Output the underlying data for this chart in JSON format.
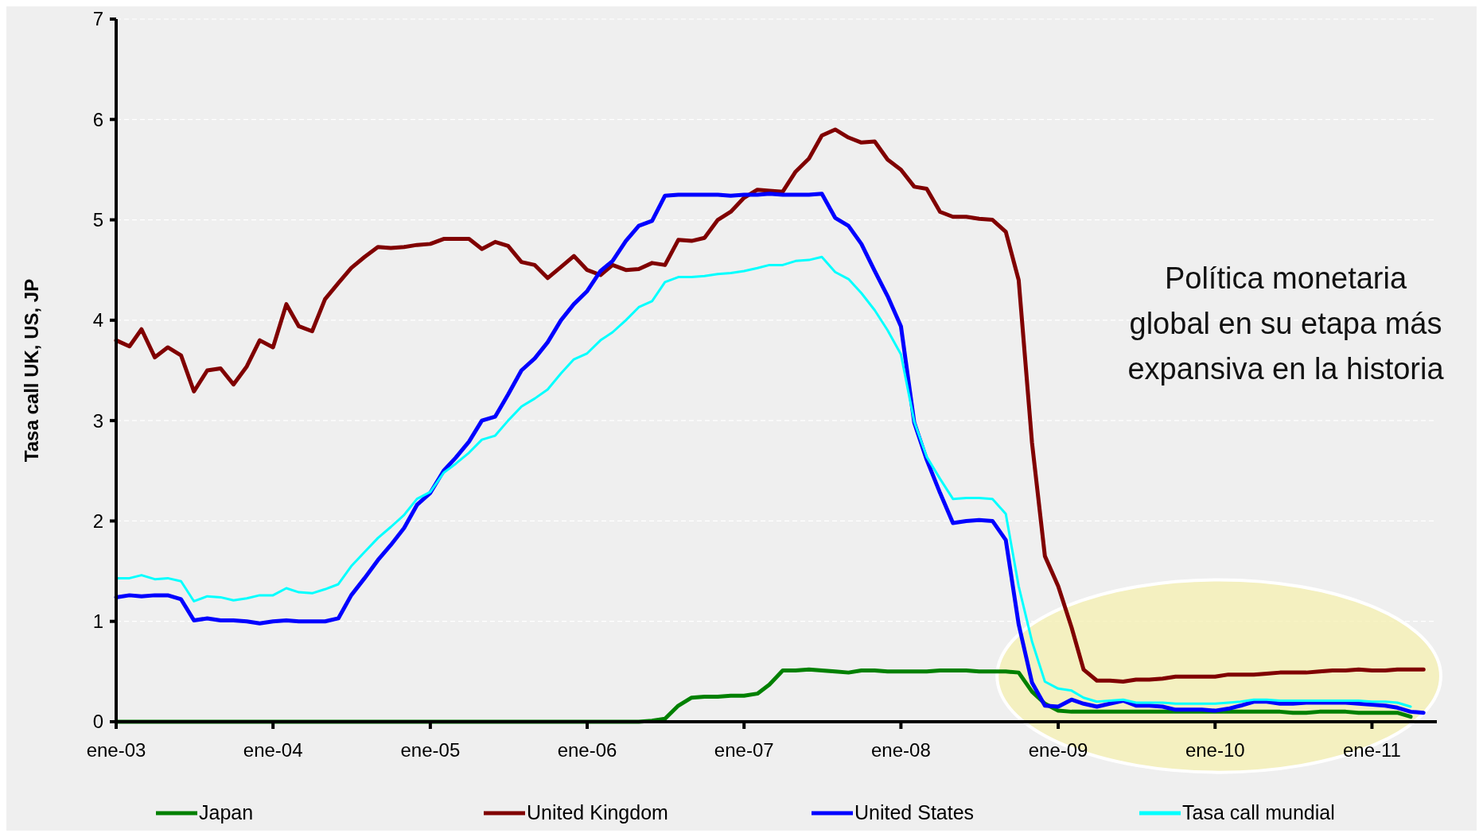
{
  "chart_data": {
    "type": "line",
    "ylabel": "Tasa call UK, US, JP",
    "annotations": [
      "Política monetaria global en su etapa más expansiva en la historia"
    ],
    "x": [
      "2003-01",
      "2003-02",
      "2003-03",
      "2003-04",
      "2003-05",
      "2003-06",
      "2003-07",
      "2003-08",
      "2003-09",
      "2003-10",
      "2003-11",
      "2003-12",
      "2004-01",
      "2004-02",
      "2004-03",
      "2004-04",
      "2004-05",
      "2004-06",
      "2004-07",
      "2004-08",
      "2004-09",
      "2004-10",
      "2004-11",
      "2004-12",
      "2005-01",
      "2005-02",
      "2005-03",
      "2005-04",
      "2005-05",
      "2005-06",
      "2005-07",
      "2005-08",
      "2005-09",
      "2005-10",
      "2005-11",
      "2005-12",
      "2006-01",
      "2006-02",
      "2006-03",
      "2006-04",
      "2006-05",
      "2006-06",
      "2006-07",
      "2006-08",
      "2006-09",
      "2006-10",
      "2006-11",
      "2006-12",
      "2007-01",
      "2007-02",
      "2007-03",
      "2007-04",
      "2007-05",
      "2007-06",
      "2007-07",
      "2007-08",
      "2007-09",
      "2007-10",
      "2007-11",
      "2007-12",
      "2008-01",
      "2008-02",
      "2008-03",
      "2008-04",
      "2008-05",
      "2008-06",
      "2008-07",
      "2008-08",
      "2008-09",
      "2008-10",
      "2008-11",
      "2008-12",
      "2009-01",
      "2009-02",
      "2009-03",
      "2009-04",
      "2009-05",
      "2009-06",
      "2009-07",
      "2009-08",
      "2009-09",
      "2009-10",
      "2009-11",
      "2009-12",
      "2010-01",
      "2010-02",
      "2010-03",
      "2010-04",
      "2010-05",
      "2010-06",
      "2010-07",
      "2010-08",
      "2010-09",
      "2010-10",
      "2010-11",
      "2010-12",
      "2011-01",
      "2011-02",
      "2011-03",
      "2011-04",
      "2011-05"
    ],
    "series": [
      {
        "name": "Japan",
        "color": "#008000",
        "values": [
          0,
          0,
          0,
          0,
          0,
          0,
          0,
          0,
          0,
          0,
          0,
          0,
          0,
          0,
          0,
          0,
          0,
          0,
          0,
          0,
          0,
          0,
          0,
          0,
          0,
          0,
          0,
          0,
          0,
          0,
          0,
          0,
          0,
          0,
          0,
          0,
          0,
          0,
          0,
          0,
          0,
          0.01,
          0.03,
          0.16,
          0.24,
          0.25,
          0.25,
          0.26,
          0.26,
          0.28,
          0.37,
          0.51,
          0.51,
          0.52,
          0.51,
          0.5,
          0.49,
          0.51,
          0.51,
          0.5,
          0.5,
          0.5,
          0.5,
          0.51,
          0.51,
          0.51,
          0.5,
          0.5,
          0.5,
          0.49,
          0.3,
          0.18,
          0.11,
          0.1,
          0.1,
          0.1,
          0.1,
          0.1,
          0.1,
          0.1,
          0.1,
          0.1,
          0.1,
          0.1,
          0.1,
          0.1,
          0.1,
          0.1,
          0.1,
          0.1,
          0.09,
          0.09,
          0.1,
          0.1,
          0.1,
          0.09,
          0.09,
          0.09,
          0.09,
          0.05,
          null
        ]
      },
      {
        "name": "United Kingdom",
        "color": "#800000",
        "values": [
          3.8,
          3.74,
          3.91,
          3.63,
          3.73,
          3.65,
          3.29,
          3.5,
          3.52,
          3.36,
          3.54,
          3.8,
          3.73,
          4.16,
          3.94,
          3.89,
          4.21,
          4.37,
          4.52,
          4.63,
          4.73,
          4.72,
          4.73,
          4.75,
          4.76,
          4.81,
          4.81,
          4.81,
          4.71,
          4.78,
          4.74,
          4.58,
          4.55,
          4.42,
          4.53,
          4.64,
          4.5,
          4.45,
          4.55,
          4.5,
          4.51,
          4.57,
          4.55,
          4.8,
          4.79,
          4.82,
          5.0,
          5.08,
          5.22,
          5.3,
          5.29,
          5.28,
          5.48,
          5.61,
          5.84,
          5.9,
          5.82,
          5.77,
          5.78,
          5.6,
          5.5,
          5.33,
          5.31,
          5.08,
          5.03,
          5.03,
          5.01,
          5.0,
          4.88,
          4.4,
          2.78,
          1.65,
          1.35,
          0.94,
          0.52,
          0.41,
          0.41,
          0.4,
          0.42,
          0.42,
          0.43,
          0.45,
          0.45,
          0.45,
          0.45,
          0.47,
          0.47,
          0.47,
          0.48,
          0.49,
          0.49,
          0.49,
          0.5,
          0.51,
          0.51,
          0.52,
          0.51,
          0.51,
          0.52,
          0.52,
          0.52
        ]
      },
      {
        "name": "United States",
        "color": "#0000ff",
        "values": [
          1.24,
          1.26,
          1.25,
          1.26,
          1.26,
          1.22,
          1.01,
          1.03,
          1.01,
          1.01,
          1.0,
          0.98,
          1.0,
          1.01,
          1.0,
          1.0,
          1.0,
          1.03,
          1.26,
          1.43,
          1.61,
          1.76,
          1.93,
          2.16,
          2.28,
          2.5,
          2.63,
          2.79,
          3.0,
          3.04,
          3.26,
          3.5,
          3.62,
          3.78,
          4.0,
          4.16,
          4.29,
          4.49,
          4.59,
          4.79,
          4.94,
          4.99,
          5.24,
          5.25,
          5.25,
          5.25,
          5.25,
          5.24,
          5.25,
          5.25,
          5.26,
          5.25,
          5.25,
          5.25,
          5.26,
          5.02,
          4.94,
          4.76,
          4.49,
          4.24,
          3.94,
          2.98,
          2.61,
          2.28,
          1.98,
          2.0,
          2.01,
          2.0,
          1.81,
          0.97,
          0.39,
          0.16,
          0.15,
          0.22,
          0.18,
          0.15,
          0.18,
          0.21,
          0.16,
          0.16,
          0.15,
          0.12,
          0.12,
          0.12,
          0.11,
          0.13,
          0.16,
          0.2,
          0.2,
          0.18,
          0.18,
          0.19,
          0.19,
          0.19,
          0.19,
          0.18,
          0.17,
          0.16,
          0.14,
          0.1,
          0.09
        ]
      },
      {
        "name": "Tasa call mundial",
        "color": "#00ffff",
        "values": [
          1.43,
          1.43,
          1.46,
          1.42,
          1.43,
          1.4,
          1.2,
          1.25,
          1.24,
          1.21,
          1.23,
          1.26,
          1.26,
          1.33,
          1.29,
          1.28,
          1.32,
          1.37,
          1.55,
          1.69,
          1.83,
          1.94,
          2.06,
          2.22,
          2.29,
          2.48,
          2.57,
          2.68,
          2.81,
          2.85,
          3.0,
          3.14,
          3.22,
          3.31,
          3.47,
          3.61,
          3.67,
          3.8,
          3.88,
          4.0,
          4.13,
          4.19,
          4.38,
          4.43,
          4.43,
          4.44,
          4.46,
          4.47,
          4.49,
          4.52,
          4.55,
          4.55,
          4.59,
          4.6,
          4.63,
          4.48,
          4.41,
          4.27,
          4.1,
          3.9,
          3.66,
          2.99,
          2.64,
          2.42,
          2.22,
          2.23,
          2.23,
          2.22,
          2.07,
          1.35,
          0.8,
          0.4,
          0.33,
          0.31,
          0.24,
          0.2,
          0.21,
          0.22,
          0.19,
          0.19,
          0.19,
          0.18,
          0.18,
          0.18,
          0.18,
          0.19,
          0.2,
          0.22,
          0.22,
          0.21,
          0.21,
          0.21,
          0.21,
          0.21,
          0.21,
          0.21,
          0.2,
          0.2,
          0.19,
          0.15,
          null
        ]
      }
    ],
    "xlim": [
      "2003-01",
      "2011-06"
    ],
    "xticks": [
      {
        "value": "2003-01",
        "label": "ene-03"
      },
      {
        "value": "2004-01",
        "label": "ene-04"
      },
      {
        "value": "2005-01",
        "label": "ene-05"
      },
      {
        "value": "2006-01",
        "label": "ene-06"
      },
      {
        "value": "2007-01",
        "label": "ene-07"
      },
      {
        "value": "2008-01",
        "label": "ene-08"
      },
      {
        "value": "2009-01",
        "label": "ene-09"
      },
      {
        "value": "2010-01",
        "label": "ene-10"
      },
      {
        "value": "2011-01",
        "label": "ene-11"
      }
    ],
    "ylim": [
      0,
      7
    ],
    "yticks": [
      0,
      1,
      2,
      3,
      4,
      5,
      6,
      7
    ],
    "grid": "y",
    "legend": "bottom",
    "marker": "none",
    "line_style": "solid"
  }
}
